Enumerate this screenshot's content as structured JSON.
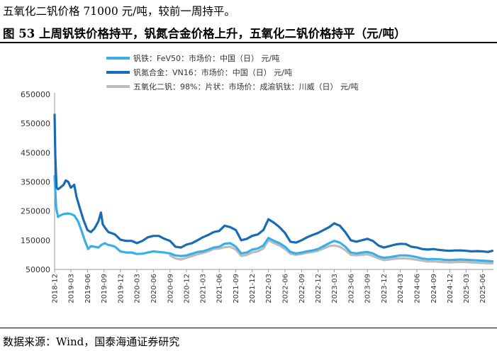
{
  "header": {
    "intro": "五氧化二钒价格 71000 元/吨，较前一周持平。",
    "figure_title": "图 53  上周钒铁价格持平，钒氮合金价格上升，五氧化二钒价格持平（元/吨）"
  },
  "footer": {
    "source": "数据来源：Wind，国泰海通证券研究"
  },
  "colors": {
    "ferrovanadium": "#3aaee8",
    "vanadium_nitrogen": "#1a6bb5",
    "v2o5": "#bcbcbc"
  },
  "chart_data": {
    "type": "line",
    "ylim": [
      50000,
      650000
    ],
    "yticks": [
      "650000",
      "550000",
      "450000",
      "350000",
      "250000",
      "150000",
      "50000"
    ],
    "yticks_values": [
      650000,
      550000,
      450000,
      350000,
      250000,
      150000,
      50000
    ],
    "xticks": [
      "2018-12",
      "2019-03",
      "2019-06",
      "2019-09",
      "2019-12",
      "2020-03",
      "2020-06",
      "2020-09",
      "2020-12",
      "2021-03",
      "2021-06",
      "2021-09",
      "2021-12",
      "2022-03",
      "2022-06",
      "2022-09",
      "2022-12",
      "2023-03",
      "2023-06",
      "2023-09",
      "2023-12",
      "2024-03",
      "2024-06",
      "2024-09",
      "2024-12",
      "2025-03",
      "2025-06"
    ],
    "grid": false,
    "legend_position": "top-left",
    "series": [
      {
        "name": "钒铁：FeV50：市场价：中国（日）  元/吨",
        "color": "#3aaee8",
        "points": [
          [
            "2018-12-01",
            370000
          ],
          [
            "2018-12-10",
            260000
          ],
          [
            "2018-12-20",
            230000
          ],
          [
            "2019-01-01",
            235000
          ],
          [
            "2019-01-20",
            240000
          ],
          [
            "2019-02-10",
            242000
          ],
          [
            "2019-03-01",
            240000
          ],
          [
            "2019-03-20",
            235000
          ],
          [
            "2019-04-10",
            215000
          ],
          [
            "2019-05-01",
            180000
          ],
          [
            "2019-05-20",
            145000
          ],
          [
            "2019-06-05",
            120000
          ],
          [
            "2019-06-20",
            130000
          ],
          [
            "2019-07-10",
            128000
          ],
          [
            "2019-08-01",
            125000
          ],
          [
            "2019-08-20",
            135000
          ],
          [
            "2019-09-05",
            140000
          ],
          [
            "2019-09-20",
            135000
          ],
          [
            "2019-10-10",
            132000
          ],
          [
            "2019-11-01",
            128000
          ],
          [
            "2019-12-01",
            112000
          ],
          [
            "2020-01-01",
            108000
          ],
          [
            "2020-02-01",
            108000
          ],
          [
            "2020-03-01",
            103000
          ],
          [
            "2020-04-01",
            104000
          ],
          [
            "2020-05-01",
            108000
          ],
          [
            "2020-06-01",
            112000
          ],
          [
            "2020-07-01",
            110000
          ],
          [
            "2020-08-01",
            108000
          ],
          [
            "2020-09-01",
            105000
          ],
          [
            "2020-10-01",
            98000
          ],
          [
            "2020-11-01",
            96000
          ],
          [
            "2020-12-01",
            98000
          ],
          [
            "2021-01-01",
            104000
          ],
          [
            "2021-02-01",
            110000
          ],
          [
            "2021-03-01",
            112000
          ],
          [
            "2021-04-01",
            118000
          ],
          [
            "2021-05-01",
            125000
          ],
          [
            "2021-06-01",
            128000
          ],
          [
            "2021-07-01",
            138000
          ],
          [
            "2021-08-01",
            140000
          ],
          [
            "2021-09-01",
            128000
          ],
          [
            "2021-10-01",
            105000
          ],
          [
            "2021-11-01",
            108000
          ],
          [
            "2021-12-01",
            118000
          ],
          [
            "2022-01-01",
            122000
          ],
          [
            "2022-02-01",
            132000
          ],
          [
            "2022-03-01",
            158000
          ],
          [
            "2022-04-01",
            148000
          ],
          [
            "2022-05-01",
            140000
          ],
          [
            "2022-06-01",
            128000
          ],
          [
            "2022-07-01",
            110000
          ],
          [
            "2022-08-01",
            105000
          ],
          [
            "2022-09-01",
            108000
          ],
          [
            "2022-10-01",
            112000
          ],
          [
            "2022-11-01",
            115000
          ],
          [
            "2022-12-01",
            120000
          ],
          [
            "2023-01-01",
            130000
          ],
          [
            "2023-02-01",
            140000
          ],
          [
            "2023-03-01",
            148000
          ],
          [
            "2023-04-01",
            142000
          ],
          [
            "2023-05-01",
            128000
          ],
          [
            "2023-06-01",
            108000
          ],
          [
            "2023-07-01",
            105000
          ],
          [
            "2023-08-01",
            108000
          ],
          [
            "2023-09-01",
            110000
          ],
          [
            "2023-10-01",
            105000
          ],
          [
            "2023-11-01",
            95000
          ],
          [
            "2023-12-01",
            90000
          ],
          [
            "2024-01-01",
            92000
          ],
          [
            "2024-02-01",
            95000
          ],
          [
            "2024-03-01",
            98000
          ],
          [
            "2024-04-01",
            98000
          ],
          [
            "2024-05-01",
            96000
          ],
          [
            "2024-06-01",
            92000
          ],
          [
            "2024-07-01",
            88000
          ],
          [
            "2024-08-01",
            85000
          ],
          [
            "2024-09-01",
            86000
          ],
          [
            "2024-10-01",
            85000
          ],
          [
            "2024-11-01",
            83000
          ],
          [
            "2024-12-01",
            82000
          ],
          [
            "2025-01-01",
            83000
          ],
          [
            "2025-02-01",
            84000
          ],
          [
            "2025-03-01",
            83000
          ],
          [
            "2025-04-01",
            82000
          ],
          [
            "2025-05-01",
            81000
          ],
          [
            "2025-06-01",
            80000
          ],
          [
            "2025-07-01",
            79000
          ],
          [
            "2025-07-25",
            78000
          ]
        ]
      },
      {
        "name": "钒氮合金：VN16：市场价：中国（日）  元/吨",
        "color": "#1a6bb5",
        "points": [
          [
            "2018-12-01",
            580000
          ],
          [
            "2018-12-05",
            440000
          ],
          [
            "2018-12-12",
            330000
          ],
          [
            "2018-12-20",
            325000
          ],
          [
            "2019-01-01",
            330000
          ],
          [
            "2019-01-20",
            340000
          ],
          [
            "2019-02-01",
            355000
          ],
          [
            "2019-02-15",
            350000
          ],
          [
            "2019-03-01",
            330000
          ],
          [
            "2019-03-20",
            340000
          ],
          [
            "2019-04-01",
            300000
          ],
          [
            "2019-04-20",
            260000
          ],
          [
            "2019-05-10",
            220000
          ],
          [
            "2019-06-01",
            185000
          ],
          [
            "2019-06-20",
            178000
          ],
          [
            "2019-07-10",
            190000
          ],
          [
            "2019-08-01",
            215000
          ],
          [
            "2019-08-15",
            245000
          ],
          [
            "2019-08-25",
            205000
          ],
          [
            "2019-09-10",
            190000
          ],
          [
            "2019-09-25",
            178000
          ],
          [
            "2019-10-10",
            175000
          ],
          [
            "2019-11-01",
            170000
          ],
          [
            "2019-12-01",
            152000
          ],
          [
            "2020-01-01",
            148000
          ],
          [
            "2020-02-01",
            148000
          ],
          [
            "2020-03-01",
            140000
          ],
          [
            "2020-04-01",
            148000
          ],
          [
            "2020-05-01",
            160000
          ],
          [
            "2020-06-01",
            165000
          ],
          [
            "2020-07-01",
            165000
          ],
          [
            "2020-08-01",
            155000
          ],
          [
            "2020-09-01",
            148000
          ],
          [
            "2020-10-01",
            128000
          ],
          [
            "2020-11-01",
            125000
          ],
          [
            "2020-12-01",
            135000
          ],
          [
            "2021-01-01",
            140000
          ],
          [
            "2021-02-01",
            150000
          ],
          [
            "2021-03-01",
            160000
          ],
          [
            "2021-04-01",
            168000
          ],
          [
            "2021-05-01",
            178000
          ],
          [
            "2021-06-01",
            182000
          ],
          [
            "2021-07-01",
            200000
          ],
          [
            "2021-08-01",
            195000
          ],
          [
            "2021-09-01",
            185000
          ],
          [
            "2021-10-01",
            150000
          ],
          [
            "2021-11-01",
            155000
          ],
          [
            "2021-12-01",
            165000
          ],
          [
            "2022-01-01",
            170000
          ],
          [
            "2022-02-01",
            185000
          ],
          [
            "2022-03-01",
            222000
          ],
          [
            "2022-04-01",
            210000
          ],
          [
            "2022-05-01",
            195000
          ],
          [
            "2022-06-01",
            175000
          ],
          [
            "2022-07-01",
            145000
          ],
          [
            "2022-08-01",
            142000
          ],
          [
            "2022-09-01",
            150000
          ],
          [
            "2022-10-01",
            160000
          ],
          [
            "2022-11-01",
            168000
          ],
          [
            "2022-12-01",
            175000
          ],
          [
            "2023-01-01",
            185000
          ],
          [
            "2023-02-01",
            195000
          ],
          [
            "2023-03-01",
            208000
          ],
          [
            "2023-04-01",
            200000
          ],
          [
            "2023-05-01",
            178000
          ],
          [
            "2023-06-01",
            150000
          ],
          [
            "2023-07-01",
            145000
          ],
          [
            "2023-08-01",
            150000
          ],
          [
            "2023-09-01",
            155000
          ],
          [
            "2023-10-01",
            148000
          ],
          [
            "2023-11-01",
            132000
          ],
          [
            "2023-12-01",
            125000
          ],
          [
            "2024-01-01",
            130000
          ],
          [
            "2024-02-01",
            135000
          ],
          [
            "2024-03-01",
            138000
          ],
          [
            "2024-04-01",
            137000
          ],
          [
            "2024-05-01",
            128000
          ],
          [
            "2024-06-01",
            125000
          ],
          [
            "2024-07-01",
            120000
          ],
          [
            "2024-08-01",
            118000
          ],
          [
            "2024-09-01",
            120000
          ],
          [
            "2024-10-01",
            117000
          ],
          [
            "2024-11-01",
            115000
          ],
          [
            "2024-12-01",
            114000
          ],
          [
            "2025-01-01",
            115000
          ],
          [
            "2025-02-01",
            115000
          ],
          [
            "2025-03-01",
            114000
          ],
          [
            "2025-04-01",
            112000
          ],
          [
            "2025-05-01",
            113000
          ],
          [
            "2025-06-01",
            112000
          ],
          [
            "2025-07-01",
            110000
          ],
          [
            "2025-07-25",
            114000
          ]
        ]
      },
      {
        "name": "五氧化二钒：98%：片状：市场价：成渝钒钛：川威（日）  元/吨",
        "color": "#bcbcbc",
        "points": [
          [
            "2020-09-01",
            98000
          ],
          [
            "2020-10-01",
            88000
          ],
          [
            "2020-11-01",
            84000
          ],
          [
            "2020-12-01",
            90000
          ],
          [
            "2021-01-01",
            96000
          ],
          [
            "2021-02-01",
            102000
          ],
          [
            "2021-03-01",
            106000
          ],
          [
            "2021-04-01",
            112000
          ],
          [
            "2021-05-01",
            120000
          ],
          [
            "2021-06-01",
            122000
          ],
          [
            "2021-07-01",
            126000
          ],
          [
            "2021-08-01",
            128000
          ],
          [
            "2021-09-01",
            118000
          ],
          [
            "2021-10-01",
            96000
          ],
          [
            "2021-11-01",
            100000
          ],
          [
            "2021-12-01",
            108000
          ],
          [
            "2022-01-01",
            112000
          ],
          [
            "2022-02-01",
            122000
          ],
          [
            "2022-03-01",
            150000
          ],
          [
            "2022-04-01",
            140000
          ],
          [
            "2022-05-01",
            132000
          ],
          [
            "2022-06-01",
            120000
          ],
          [
            "2022-07-01",
            104000
          ],
          [
            "2022-08-01",
            100000
          ],
          [
            "2022-09-01",
            103000
          ],
          [
            "2022-10-01",
            107000
          ],
          [
            "2022-11-01",
            110000
          ],
          [
            "2022-12-01",
            114000
          ],
          [
            "2023-01-01",
            122000
          ],
          [
            "2023-02-01",
            130000
          ],
          [
            "2023-03-01",
            132000
          ],
          [
            "2023-04-01",
            128000
          ],
          [
            "2023-05-01",
            116000
          ],
          [
            "2023-06-01",
            100000
          ],
          [
            "2023-07-01",
            98000
          ],
          [
            "2023-08-01",
            100000
          ],
          [
            "2023-09-01",
            102000
          ],
          [
            "2023-10-01",
            96000
          ],
          [
            "2023-11-01",
            88000
          ],
          [
            "2023-12-01",
            82000
          ],
          [
            "2024-01-01",
            84000
          ],
          [
            "2024-02-01",
            87000
          ],
          [
            "2024-03-01",
            88000
          ],
          [
            "2024-04-01",
            88000
          ],
          [
            "2024-05-01",
            86000
          ],
          [
            "2024-06-01",
            83000
          ],
          [
            "2024-07-01",
            80000
          ],
          [
            "2024-08-01",
            77000
          ],
          [
            "2024-09-01",
            78000
          ],
          [
            "2024-10-01",
            76000
          ],
          [
            "2024-11-01",
            75000
          ],
          [
            "2024-12-01",
            74000
          ],
          [
            "2025-01-01",
            75000
          ],
          [
            "2025-02-01",
            76000
          ],
          [
            "2025-03-01",
            75000
          ],
          [
            "2025-04-01",
            74000
          ],
          [
            "2025-05-01",
            73000
          ],
          [
            "2025-06-01",
            72000
          ],
          [
            "2025-07-01",
            71000
          ],
          [
            "2025-07-25",
            71000
          ]
        ]
      }
    ]
  }
}
